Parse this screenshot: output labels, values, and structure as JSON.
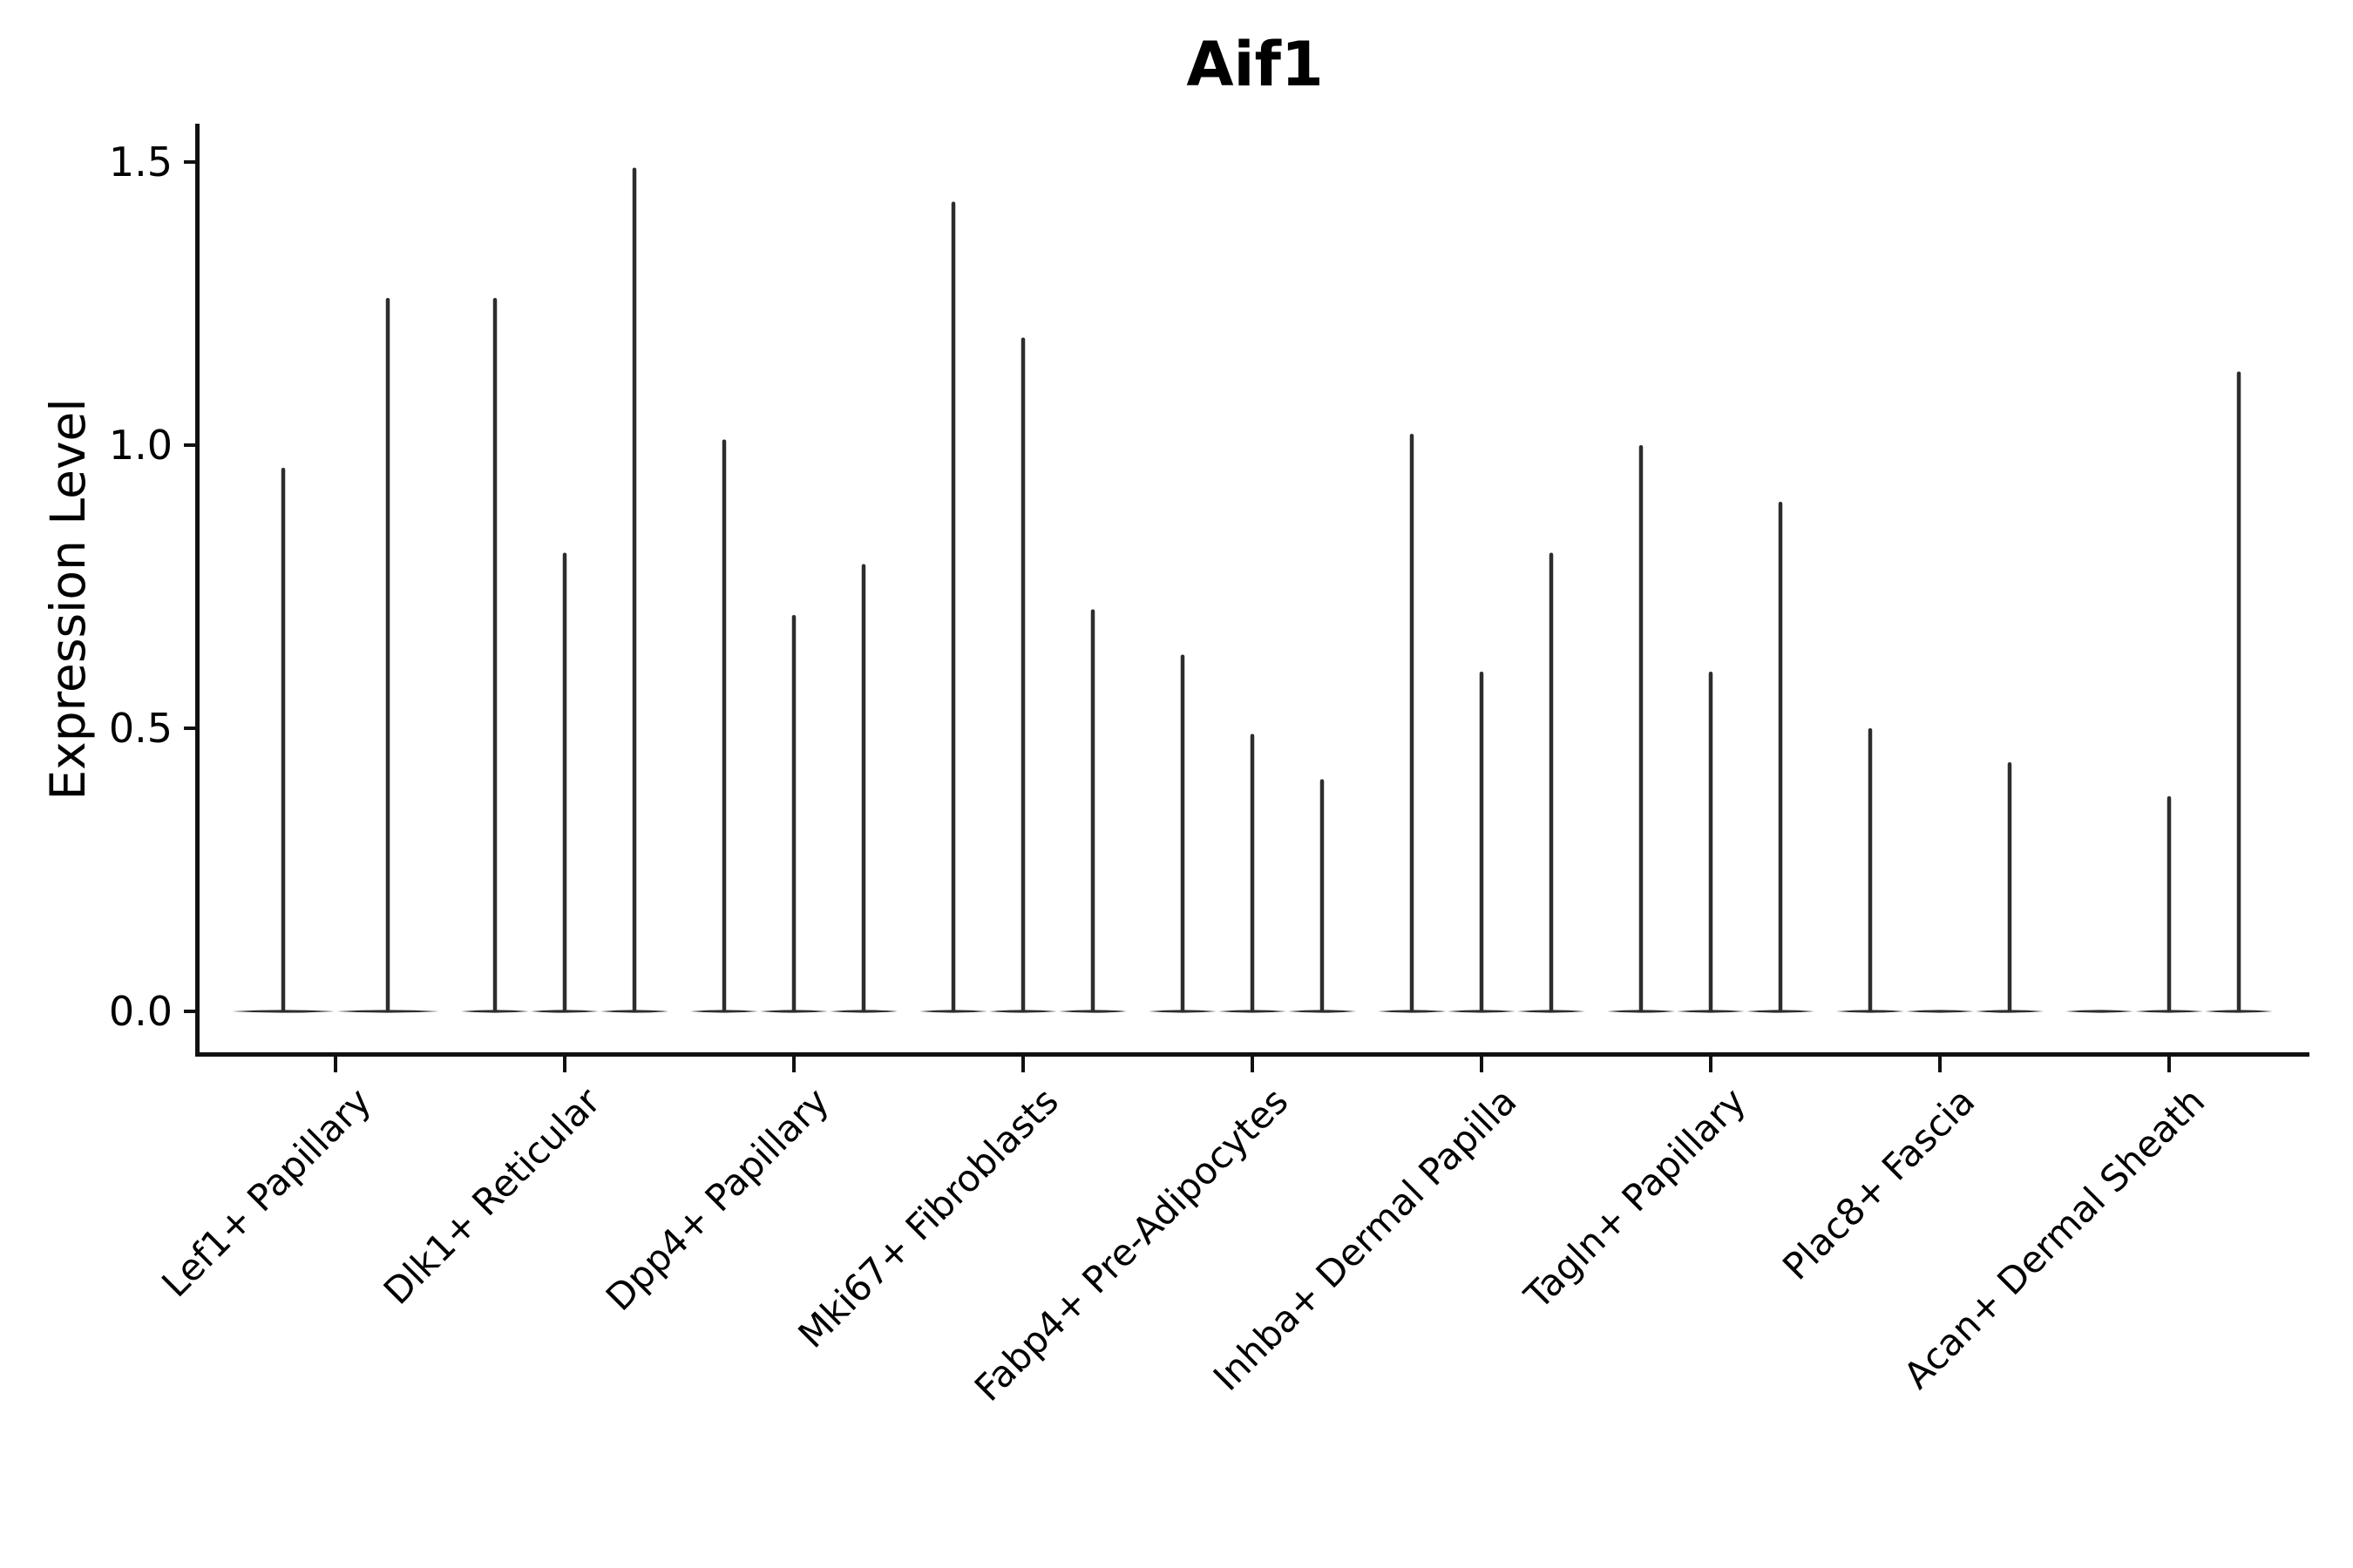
{
  "figure": {
    "title": "Aif1",
    "y_axis": {
      "label": "Expression Level",
      "tick_labels": [
        "0.0",
        "0.5",
        "1.0",
        "1.5"
      ]
    },
    "x_axis": {
      "tick_count": 9
    }
  },
  "chart_data": {
    "type": "violin",
    "title": "Aif1",
    "xlabel": "",
    "ylabel": "Expression Level",
    "ylim": [
      0,
      1.55
    ],
    "yticks": [
      0.0,
      0.5,
      1.0,
      1.5
    ],
    "ytick_labels": [
      "0.0",
      "0.5",
      "1.0",
      "1.5"
    ],
    "grid": false,
    "legend": "none",
    "categories": [
      "Lef1+ Papillary",
      "Dlk1+ Reticular",
      "Dpp4+ Papillary",
      "Mki67+ Fibroblasts",
      "Fabp4+ Pre-Adipocytes",
      "Inhba+ Dermal Papilla",
      "Tagln+ Papillary",
      "Plac8+ Fascia",
      "Acan+ Dermal Sheath"
    ],
    "violins": [
      {
        "category": "Lef1+ Papillary",
        "max_values": [
          0.96,
          1.26
        ]
      },
      {
        "category": "Dlk1+ Reticular",
        "max_values": [
          1.26,
          0.81,
          1.49
        ]
      },
      {
        "category": "Dpp4+ Papillary",
        "max_values": [
          1.01,
          0.7,
          0.79
        ]
      },
      {
        "category": "Mki67+ Fibroblasts",
        "max_values": [
          1.43,
          1.19,
          0.71
        ]
      },
      {
        "category": "Fabp4+ Pre-Adipocytes",
        "max_values": [
          0.63,
          0.49,
          0.41
        ]
      },
      {
        "category": "Inhba+ Dermal Papilla",
        "max_values": [
          1.02,
          0.6,
          0.81
        ]
      },
      {
        "category": "Tagln+ Papillary",
        "max_values": [
          1.0,
          0.6,
          0.9
        ]
      },
      {
        "category": "Plac8+ Fascia",
        "max_values": [
          0.5,
          0.0,
          0.44
        ]
      },
      {
        "category": "Acan+ Dermal Sheath",
        "max_values": [
          0.0,
          0.38,
          1.13
        ]
      }
    ],
    "description": "Violin plot of mostly-zero expression; each violin collapses to a flat lens at 0 with a thin spike up to its maximum expression value.",
    "style": {
      "violin_color": "#2d2d2d",
      "axis_color": "#111111",
      "text_color": "#000000",
      "background": "#ffffff"
    }
  }
}
